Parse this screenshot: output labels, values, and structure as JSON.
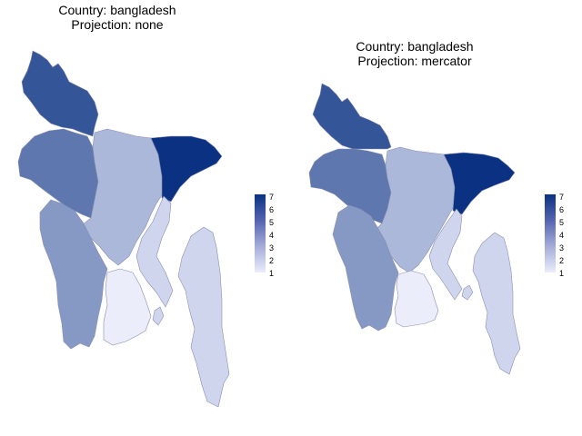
{
  "panels": [
    {
      "title_line1": "Country: bangladesh",
      "title_line2": "Projection: none"
    },
    {
      "title_line1": "Country: bangladesh",
      "title_line2": "Projection: mercator"
    }
  ],
  "legend": {
    "ticks": [
      "7",
      "6",
      "5",
      "4",
      "3",
      "2",
      "1"
    ],
    "scale_min": 1,
    "scale_max": 7,
    "color_low": "#ebedfb",
    "color_high": "#0b3282"
  },
  "region_values": {
    "rangpur": 6,
    "rajshahi": 5,
    "dhaka": 3,
    "sylhet": 7,
    "khulna": 4,
    "chittagong": 2,
    "barisal": 1
  }
}
